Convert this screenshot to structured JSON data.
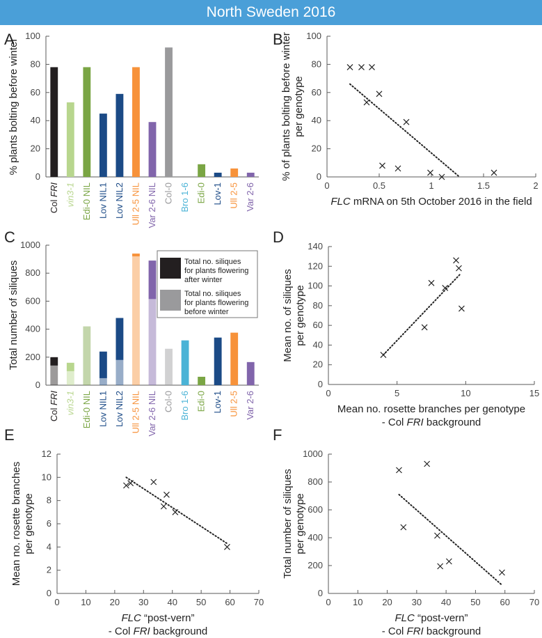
{
  "banner": {
    "title": "North Sweden 2016"
  },
  "colors": {
    "black": "#231f20",
    "lightgreen": "#b8d68e",
    "green": "#7aa544",
    "navy": "#1b4a86",
    "orange": "#f7923a",
    "purple": "#8165ab",
    "gray": "#9a9a9c",
    "cyan": "#4ab3d6",
    "banner": "#4a9fd8"
  },
  "chart_data": [
    {
      "panel": "A",
      "type": "bar",
      "ylabel": "% plants bolting before winter",
      "ylim": [
        0,
        100
      ],
      "yticks": [
        0,
        20,
        40,
        60,
        80,
        100
      ],
      "categories": [
        "Col FRI",
        "vin3-1",
        "Edi-0 NIL",
        "Lov NIL1",
        "Lov NIL2",
        "Ull 2-5 NIL",
        "Var 2-6 NIL",
        "Col-0",
        "Bro 1-6",
        "Edi-0",
        "Lov-1",
        "Ull 2-5",
        "Var 2-6"
      ],
      "values": [
        78,
        53,
        78,
        45,
        59,
        78,
        39,
        92,
        0,
        9,
        3,
        6,
        3
      ],
      "bar_colors": [
        "black",
        "lightgreen",
        "green",
        "navy",
        "navy",
        "orange",
        "purple",
        "gray",
        "cyan",
        "green",
        "navy",
        "orange",
        "purple"
      ]
    },
    {
      "panel": "B",
      "type": "scatter",
      "ylabel_lines": [
        "% of plants bolting before winter",
        "per genotype"
      ],
      "xlabel_parts": [
        "FLC",
        " mRNA on 5th October 2016 in the field"
      ],
      "xlim": [
        0,
        2
      ],
      "ylim": [
        0,
        100
      ],
      "xticks": [
        0,
        0.5,
        1,
        1.5,
        2
      ],
      "xtick_labels": [
        "0",
        "0.5",
        "1",
        "1.5",
        "2"
      ],
      "yticks": [
        0,
        20,
        40,
        60,
        80,
        100
      ],
      "x": [
        0.22,
        0.33,
        0.43,
        0.38,
        0.5,
        0.76,
        0.53,
        0.68,
        0.99,
        1.1,
        1.6
      ],
      "y": [
        78,
        78,
        78,
        53,
        59,
        39,
        8,
        6,
        3,
        0,
        3
      ],
      "trendline": [
        [
          0.22,
          66
        ],
        [
          1.27,
          0
        ]
      ]
    },
    {
      "panel": "C",
      "type": "bar",
      "ylabel": "Total number of siliques",
      "ylim": [
        0,
        1000
      ],
      "yticks": [
        0,
        200,
        400,
        600,
        800,
        1000
      ],
      "categories": [
        "Col FRI",
        "vin3-1",
        "Edi-0 NIL",
        "Lov NIL1",
        "Lov NIL2",
        "Ull 2-5 NIL",
        "Var 2-6 NIL",
        "Col-0",
        "Bro 1-6",
        "Edi-0",
        "Lov-1",
        "Ull 2-5",
        "Var 2-6"
      ],
      "series": [
        {
          "name": "Total no. siliques for plants flowering before winter",
          "values": [
            140,
            100,
            420,
            50,
            180,
            920,
            615,
            260,
            0,
            0,
            0,
            0,
            0
          ]
        },
        {
          "name": "Total no. siliques for plants flowering after winter",
          "values": [
            60,
            60,
            0,
            190,
            300,
            20,
            275,
            0,
            320,
            60,
            340,
            375,
            165
          ]
        }
      ],
      "bar_colors": [
        "black",
        "lightgreen",
        "green",
        "navy",
        "navy",
        "orange",
        "purple",
        "gray",
        "cyan",
        "green",
        "navy",
        "orange",
        "purple"
      ],
      "legend": [
        {
          "lines": [
            "Total no. siliques",
            "for plants flowering",
            "after winter"
          ],
          "swatch": "#231f20"
        },
        {
          "lines": [
            "Total no. siliques",
            "for plants flowering",
            "before winter"
          ],
          "swatch": "#9a9a9c"
        }
      ]
    },
    {
      "panel": "D",
      "type": "scatter",
      "ylabel_lines": [
        "Mean no. of siliques",
        "per genotype"
      ],
      "xlabel_lines": [
        "Mean no. rosette branches per genotype",
        "- Col FRI background"
      ],
      "xlim": [
        0,
        15
      ],
      "ylim": [
        0,
        140
      ],
      "xticks": [
        0,
        5,
        10,
        15
      ],
      "xtick_labels": [
        "0",
        "5",
        "10",
        "15"
      ],
      "yticks": [
        0,
        20,
        40,
        60,
        80,
        100,
        120,
        140
      ],
      "x": [
        4,
        7,
        7.5,
        8.5,
        9.3,
        9.5,
        9.7
      ],
      "y": [
        30,
        58,
        103,
        98,
        126,
        118,
        77
      ],
      "trendline": [
        [
          4,
          30
        ],
        [
          9.6,
          112
        ]
      ]
    },
    {
      "panel": "E",
      "type": "scatter",
      "ylabel_lines": [
        "Mean no. rosette  branches",
        "per genotype"
      ],
      "xlabel_lines": [
        "FLC “post-vern”",
        "- Col FRI  background"
      ],
      "xlim": [
        0,
        70
      ],
      "ylim": [
        0,
        12
      ],
      "xticks": [
        0,
        10,
        20,
        30,
        40,
        50,
        60,
        70
      ],
      "xtick_labels": [
        "0",
        "10",
        "20",
        "30",
        "40",
        "50",
        "60",
        "70"
      ],
      "yticks": [
        0,
        2,
        4,
        6,
        8,
        10,
        12
      ],
      "x": [
        24,
        25.5,
        33.5,
        37,
        38,
        41,
        59
      ],
      "y": [
        9.3,
        9.5,
        9.6,
        7.5,
        8.5,
        7,
        4
      ],
      "trendline": [
        [
          24,
          10
        ],
        [
          59,
          4.3
        ]
      ]
    },
    {
      "panel": "F",
      "type": "scatter",
      "ylabel_lines": [
        "Total number of siliques",
        "per genotype"
      ],
      "xlabel_lines": [
        "FLC “post-vern”",
        "- Col FRI  background"
      ],
      "xlim": [
        0,
        70
      ],
      "ylim": [
        0,
        1000
      ],
      "xticks": [
        0,
        10,
        20,
        30,
        40,
        50,
        60,
        70
      ],
      "xtick_labels": [
        "0",
        "10",
        "20",
        "30",
        "40",
        "50",
        "60",
        "70"
      ],
      "yticks": [
        0,
        200,
        400,
        600,
        800,
        1000
      ],
      "x": [
        24,
        25.5,
        33.5,
        37,
        38,
        41,
        59
      ],
      "y": [
        885,
        475,
        930,
        415,
        195,
        230,
        150
      ],
      "trendline": [
        [
          24,
          710
        ],
        [
          59,
          60
        ]
      ]
    }
  ]
}
